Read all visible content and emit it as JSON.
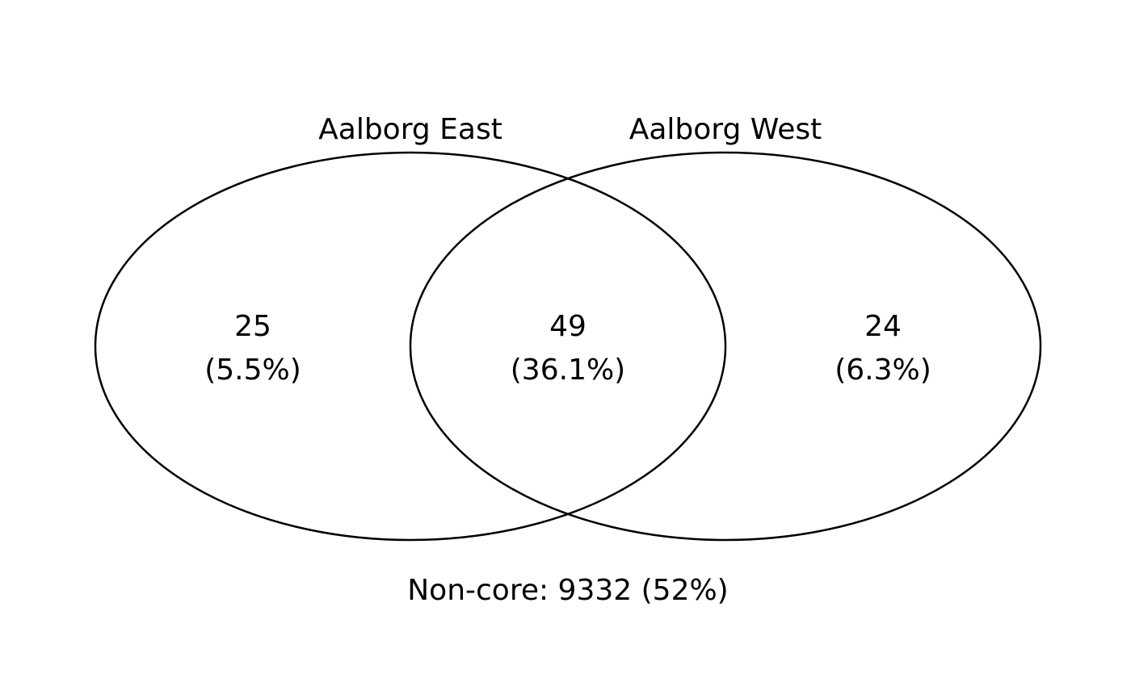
{
  "diagram": {
    "type": "venn",
    "sets": [
      {
        "name": "Aalborg East"
      },
      {
        "name": "Aalborg West"
      }
    ],
    "regions": [
      {
        "id": "east-only",
        "count": "25",
        "percent": "(5.5%)"
      },
      {
        "id": "both",
        "count": "49",
        "percent": "(36.1%)"
      },
      {
        "id": "west-only",
        "count": "24",
        "percent": "(6.3%)"
      }
    ],
    "outside_label": "Non-core: 9332 (52%)"
  },
  "colors": {
    "stroke": "#000000",
    "background": "#ffffff"
  }
}
